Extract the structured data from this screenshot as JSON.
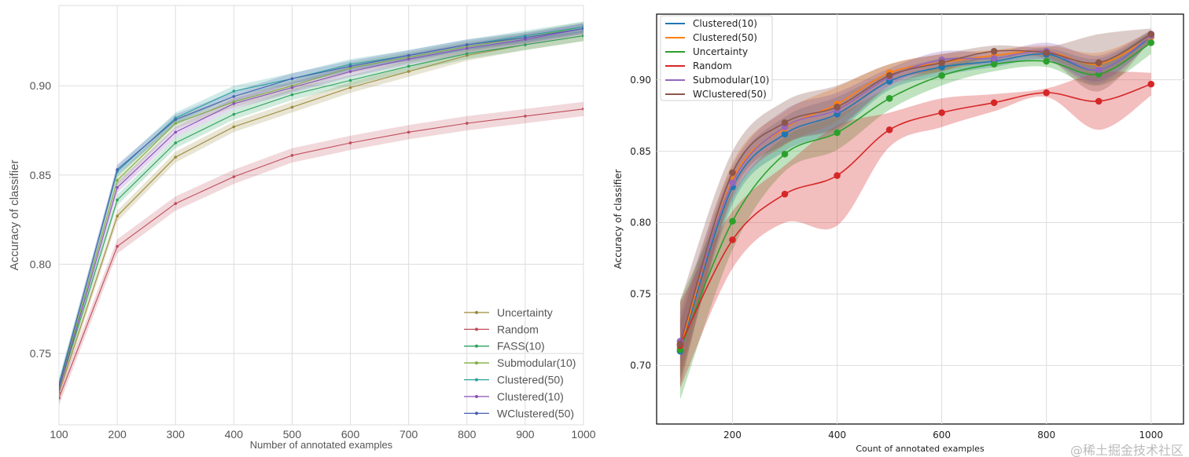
{
  "chart_data": [
    {
      "type": "line",
      "xlabel": "Number of annotated examples",
      "ylabel": "Accuracy of classifier",
      "xlim": [
        100,
        1000
      ],
      "ylim": [
        0.71,
        0.945
      ],
      "xticks": [
        "100",
        "200",
        "300",
        "400",
        "500",
        "600",
        "700",
        "800",
        "900",
        "1000"
      ],
      "yticks": [
        "0.75",
        "0.80",
        "0.85",
        "0.90"
      ],
      "grid": true,
      "legend_position": "bottom-right",
      "x": [
        100,
        200,
        300,
        400,
        500,
        600,
        700,
        800,
        900,
        1000
      ],
      "series": [
        {
          "name": "Uncertainty",
          "color": "#9c8a3a",
          "band": 0.003,
          "values": [
            0.728,
            0.827,
            0.86,
            0.877,
            0.888,
            0.899,
            0.908,
            0.917,
            0.923,
            0.928
          ]
        },
        {
          "name": "Random",
          "color": "#c04c5a",
          "band": 0.004,
          "values": [
            0.725,
            0.81,
            0.834,
            0.849,
            0.861,
            0.868,
            0.874,
            0.879,
            0.883,
            0.887
          ]
        },
        {
          "name": "FASS(10)",
          "color": "#2ca25f",
          "band": 0.003,
          "values": [
            0.73,
            0.836,
            0.868,
            0.884,
            0.895,
            0.903,
            0.911,
            0.918,
            0.923,
            0.928
          ]
        },
        {
          "name": "Submodular(10)",
          "color": "#7fae3f",
          "band": 0.003,
          "values": [
            0.731,
            0.847,
            0.879,
            0.891,
            0.9,
            0.91,
            0.916,
            0.922,
            0.927,
            0.933
          ]
        },
        {
          "name": "Clustered(50)",
          "color": "#2aa39a",
          "band": 0.003,
          "values": [
            0.733,
            0.852,
            0.882,
            0.897,
            0.904,
            0.912,
            0.917,
            0.923,
            0.928,
            0.933
          ]
        },
        {
          "name": "Clustered(10)",
          "color": "#8a4fb8",
          "band": 0.003,
          "values": [
            0.73,
            0.843,
            0.874,
            0.89,
            0.899,
            0.908,
            0.915,
            0.921,
            0.926,
            0.932
          ]
        },
        {
          "name": "WClustered(50)",
          "color": "#4a5fb5",
          "band": 0.003,
          "values": [
            0.732,
            0.853,
            0.881,
            0.894,
            0.904,
            0.911,
            0.917,
            0.923,
            0.927,
            0.932
          ]
        }
      ]
    },
    {
      "type": "line",
      "xlabel": "Count of annotated examples",
      "ylabel": "Accuracy of classifier",
      "xlim": [
        55,
        1062
      ],
      "ylim": [
        0.659,
        0.946
      ],
      "xticks": [
        "200",
        "400",
        "600",
        "800",
        "1000"
      ],
      "yticks": [
        "0.70",
        "0.75",
        "0.80",
        "0.85",
        "0.90"
      ],
      "grid": true,
      "legend_position": "top-left",
      "x": [
        100,
        200,
        300,
        400,
        500,
        600,
        700,
        800,
        900,
        1000
      ],
      "series": [
        {
          "name": "Clustered(10)",
          "color": "#1f77b4",
          "band": [
            0.02,
            0.012,
            0.012,
            0.012,
            0.006,
            0.006,
            0.004,
            0.004,
            0.008,
            0.004
          ],
          "values": [
            0.71,
            0.825,
            0.862,
            0.876,
            0.899,
            0.909,
            0.913,
            0.918,
            0.907,
            0.93
          ]
        },
        {
          "name": "Clustered(50)",
          "color": "#ff7f0e",
          "band": [
            0.02,
            0.012,
            0.012,
            0.012,
            0.006,
            0.006,
            0.004,
            0.004,
            0.008,
            0.004
          ],
          "values": [
            0.712,
            0.83,
            0.866,
            0.883,
            0.905,
            0.912,
            0.917,
            0.92,
            0.911,
            0.93
          ]
        },
        {
          "name": "Uncertainty",
          "color": "#2ca02c",
          "band": [
            0.035,
            0.02,
            0.012,
            0.012,
            0.008,
            0.007,
            0.005,
            0.004,
            0.008,
            0.008
          ],
          "values": [
            0.711,
            0.801,
            0.848,
            0.863,
            0.887,
            0.903,
            0.911,
            0.913,
            0.904,
            0.926
          ]
        },
        {
          "name": "Random",
          "color": "#d62728",
          "band": [
            0.03,
            0.02,
            0.02,
            0.035,
            0.012,
            0.01,
            0.006,
            0.003,
            0.02,
            0.008
          ],
          "values": [
            0.714,
            0.788,
            0.82,
            0.833,
            0.865,
            0.877,
            0.884,
            0.891,
            0.885,
            0.897
          ]
        },
        {
          "name": "Submodular(10)",
          "color": "#9467bd",
          "band": [
            0.02,
            0.012,
            0.012,
            0.012,
            0.006,
            0.006,
            0.004,
            0.006,
            0.01,
            0.004
          ],
          "values": [
            0.717,
            0.828,
            0.867,
            0.879,
            0.902,
            0.914,
            0.915,
            0.92,
            0.907,
            0.931
          ]
        },
        {
          "name": "WClustered(50)",
          "color": "#8c564b",
          "band": [
            0.03,
            0.015,
            0.015,
            0.015,
            0.008,
            0.006,
            0.004,
            0.004,
            0.02,
            0.004
          ],
          "values": [
            0.715,
            0.835,
            0.87,
            0.881,
            0.903,
            0.912,
            0.92,
            0.919,
            0.912,
            0.932
          ]
        }
      ]
    }
  ],
  "watermark": "@稀土掘金技术社区"
}
